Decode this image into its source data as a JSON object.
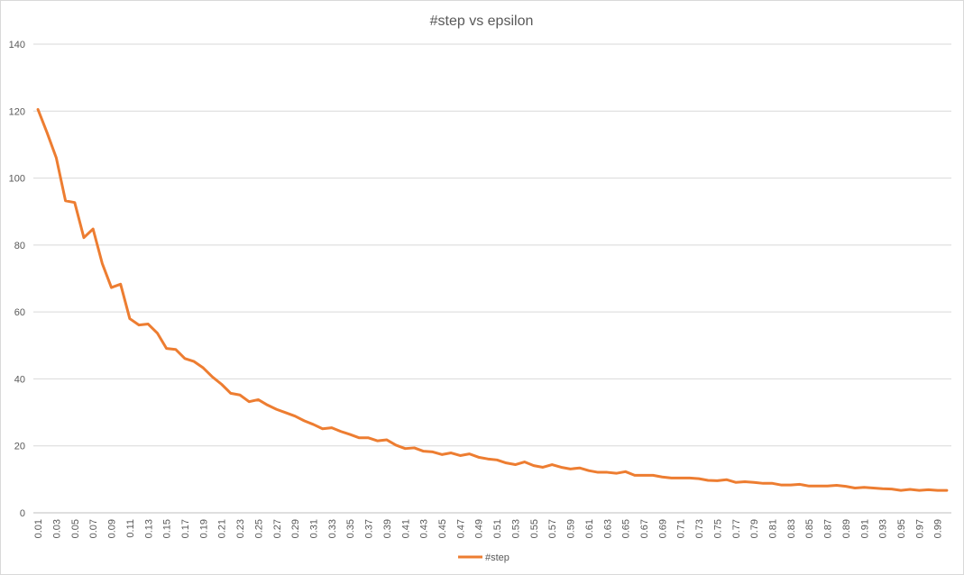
{
  "chart_data": {
    "type": "line",
    "title": "#step vs epsilon",
    "xlabel": "",
    "ylabel": "",
    "ylim": [
      0,
      140
    ],
    "y_ticks": [
      0,
      20,
      40,
      60,
      80,
      100,
      120,
      140
    ],
    "grid": true,
    "legend_position": "bottom",
    "x": [
      0.01,
      0.02,
      0.03,
      0.04,
      0.05,
      0.06,
      0.07,
      0.08,
      0.09,
      0.1,
      0.11,
      0.12,
      0.13,
      0.14,
      0.15,
      0.16,
      0.17,
      0.18,
      0.19,
      0.2,
      0.21,
      0.22,
      0.23,
      0.24,
      0.25,
      0.26,
      0.27,
      0.28,
      0.29,
      0.3,
      0.31,
      0.32,
      0.33,
      0.34,
      0.35,
      0.36,
      0.37,
      0.38,
      0.39,
      0.4,
      0.41,
      0.42,
      0.43,
      0.44,
      0.45,
      0.46,
      0.47,
      0.48,
      0.49,
      0.5,
      0.51,
      0.52,
      0.53,
      0.54,
      0.55,
      0.56,
      0.57,
      0.58,
      0.59,
      0.6,
      0.61,
      0.62,
      0.63,
      0.64,
      0.65,
      0.66,
      0.67,
      0.68,
      0.69,
      0.7,
      0.71,
      0.72,
      0.73,
      0.74,
      0.75,
      0.76,
      0.77,
      0.78,
      0.79,
      0.8,
      0.81,
      0.82,
      0.83,
      0.84,
      0.85,
      0.86,
      0.87,
      0.88,
      0.89,
      0.9,
      0.91,
      0.92,
      0.93,
      0.94,
      0.95,
      0.96,
      0.97,
      0.98,
      0.99,
      1.0
    ],
    "x_tick_labels": [
      "0.01",
      "0.03",
      "0.05",
      "0.07",
      "0.09",
      "0.11",
      "0.13",
      "0.15",
      "0.17",
      "0.19",
      "0.21",
      "0.23",
      "0.25",
      "0.27",
      "0.29",
      "0.31",
      "0.33",
      "0.35",
      "0.37",
      "0.39",
      "0.41",
      "0.43",
      "0.45",
      "0.47",
      "0.49",
      "0.51",
      "0.53",
      "0.55",
      "0.57",
      "0.59",
      "0.61",
      "0.63",
      "0.65",
      "0.67",
      "0.69",
      "0.71",
      "0.73",
      "0.75",
      "0.77",
      "0.79",
      "0.81",
      "0.83",
      "0.85",
      "0.87",
      "0.89",
      "0.91",
      "0.93",
      "0.95",
      "0.97",
      "0.99"
    ],
    "series": [
      {
        "name": "#step",
        "color": "#ed7d31",
        "values": [
          120.5,
          113.5,
          106,
          93.2,
          92.7,
          82.2,
          84.8,
          74.5,
          67.3,
          68.3,
          58,
          56.1,
          56.4,
          53.7,
          49.1,
          48.8,
          46.1,
          45.2,
          43.3,
          40.6,
          38.4,
          35.7,
          35.2,
          33.2,
          33.8,
          32.2,
          30.9,
          29.9,
          28.9,
          27.5,
          26.4,
          25.1,
          25.4,
          24.3,
          23.4,
          22.4,
          22.4,
          21.5,
          21.8,
          20.2,
          19.2,
          19.4,
          18.4,
          18.2,
          17.4,
          17.9,
          17.1,
          17.6,
          16.6,
          16.1,
          15.8,
          14.9,
          14.4,
          15.2,
          14.1,
          13.6,
          14.4,
          13.6,
          13.1,
          13.4,
          12.6,
          12.1,
          12.1,
          11.8,
          12.3,
          11.2,
          11.2,
          11.2,
          10.7,
          10.4,
          10.4,
          10.4,
          10.2,
          9.7,
          9.6,
          9.9,
          9.1,
          9.3,
          9.1,
          8.8,
          8.8,
          8.3,
          8.3,
          8.5,
          8.0,
          8.0,
          8.0,
          8.2,
          7.9,
          7.4,
          7.6,
          7.4,
          7.2,
          7.1,
          6.7,
          7.0,
          6.7,
          6.9,
          6.7,
          6.7
        ]
      }
    ]
  }
}
